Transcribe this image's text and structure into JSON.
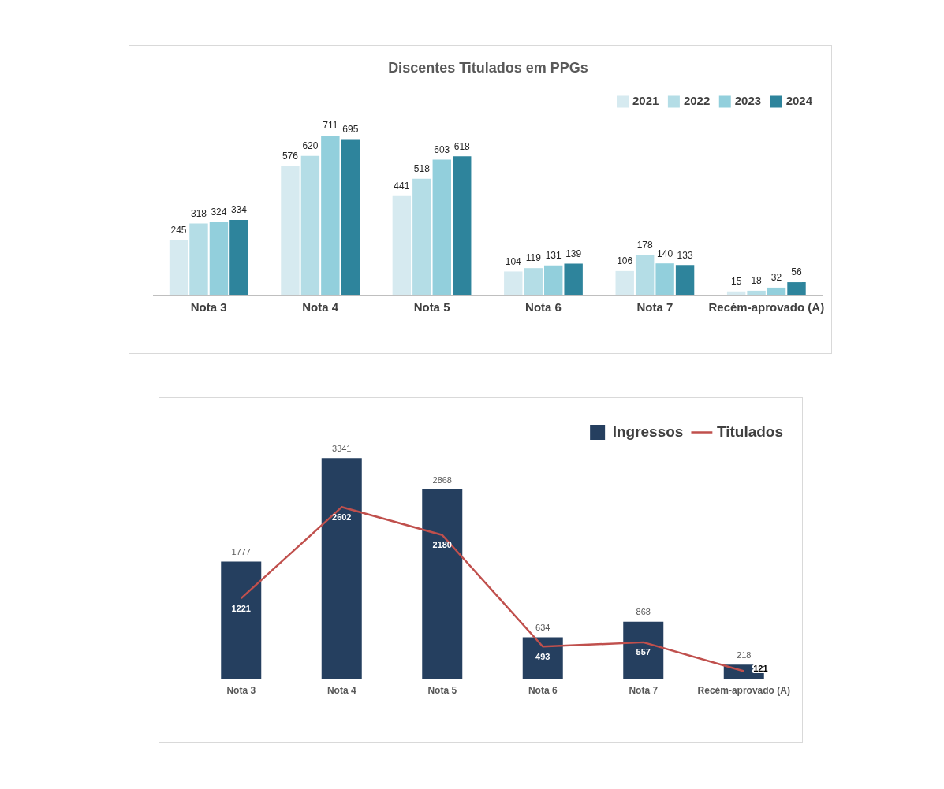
{
  "chart_data": [
    {
      "type": "bar",
      "title": "Discentes Titulados em PPGs",
      "categories": [
        "Nota 3",
        "Nota 4",
        "Nota 5",
        "Nota 6",
        "Nota 7",
        "Recém-aprovado (A)"
      ],
      "series": [
        {
          "name": "2021",
          "color": "#d6eaf0",
          "values": [
            245,
            576,
            441,
            104,
            106,
            15
          ]
        },
        {
          "name": "2022",
          "color": "#b4dde6",
          "values": [
            318,
            620,
            518,
            119,
            178,
            18
          ]
        },
        {
          "name": "2023",
          "color": "#92cfdc",
          "values": [
            324,
            711,
            603,
            131,
            140,
            32
          ]
        },
        {
          "name": "2024",
          "color": "#2e849c",
          "values": [
            334,
            695,
            618,
            139,
            133,
            56
          ]
        }
      ],
      "data_labels": true,
      "grid": false,
      "legend": "top right",
      "tick_labels": "x"
    },
    {
      "type": "bar",
      "categories": [
        "Nota 3",
        "Nota 4",
        "Nota 5",
        "Nota 6",
        "Nota 7",
        "Recém-aprovado (A)"
      ],
      "series": [
        {
          "name": "Ingressos",
          "color": "#253f5f",
          "values": [
            1777,
            3341,
            2868,
            634,
            868,
            218
          ]
        },
        {
          "name": "Titulados",
          "type": "line",
          "color": "#c0504d",
          "values": [
            1221,
            2602,
            2180,
            493,
            557,
            121
          ]
        }
      ],
      "data_labels": true,
      "grid": false,
      "legend": "top right",
      "tick_labels": "x",
      "marker": "none"
    }
  ]
}
